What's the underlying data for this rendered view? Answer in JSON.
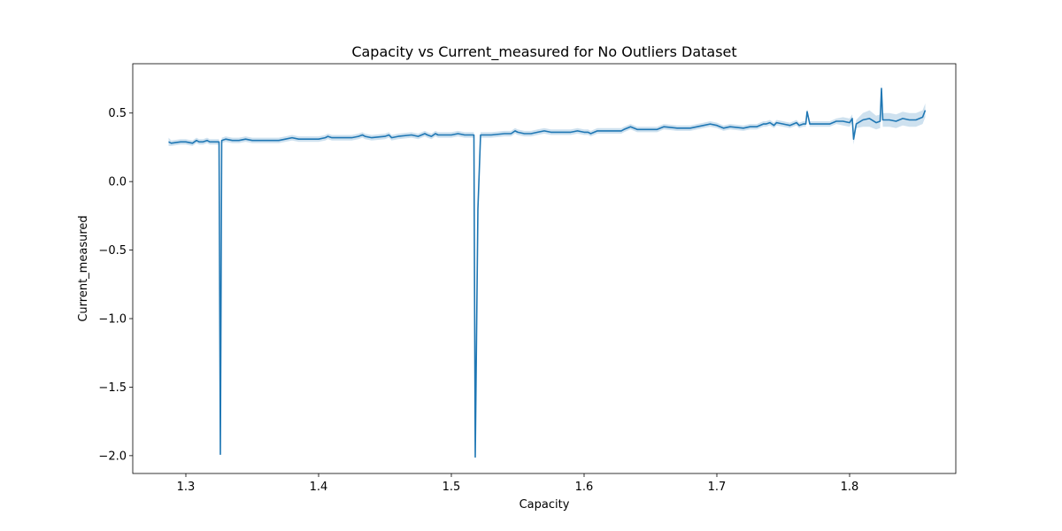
{
  "chart_data": {
    "type": "line",
    "title": "Capacity vs Current_measured for No Outliers Dataset",
    "xlabel": "Capacity",
    "ylabel": "Current_measured",
    "xlim": [
      1.26,
      1.88
    ],
    "ylim": [
      -2.13,
      0.86
    ],
    "xticks": [
      1.3,
      1.4,
      1.5,
      1.6,
      1.7,
      1.8
    ],
    "xtick_labels": [
      "1.3",
      "1.4",
      "1.5",
      "1.6",
      "1.7",
      "1.8"
    ],
    "yticks": [
      0.5,
      0.0,
      -0.5,
      -1.0,
      -1.5,
      -2.0
    ],
    "ytick_labels": [
      "0.5",
      "0.0",
      "−0.5",
      "−1.0",
      "−1.5",
      "−2.0"
    ],
    "grid": false,
    "series": [
      {
        "color": "#1f77b4",
        "band_color": "#1f77b4",
        "x": [
          1.287,
          1.289,
          1.296,
          1.3,
          1.305,
          1.308,
          1.31,
          1.313,
          1.316,
          1.318,
          1.32,
          1.323,
          1.325,
          1.326,
          1.327,
          1.33,
          1.335,
          1.34,
          1.345,
          1.35,
          1.36,
          1.37,
          1.375,
          1.38,
          1.385,
          1.39,
          1.4,
          1.405,
          1.407,
          1.41,
          1.415,
          1.42,
          1.425,
          1.43,
          1.433,
          1.435,
          1.44,
          1.45,
          1.453,
          1.455,
          1.46,
          1.47,
          1.475,
          1.48,
          1.482,
          1.485,
          1.488,
          1.49,
          1.495,
          1.5,
          1.505,
          1.51,
          1.515,
          1.517,
          1.518,
          1.52,
          1.522,
          1.525,
          1.53,
          1.54,
          1.545,
          1.548,
          1.55,
          1.555,
          1.56,
          1.565,
          1.57,
          1.575,
          1.58,
          1.585,
          1.59,
          1.595,
          1.6,
          1.603,
          1.605,
          1.61,
          1.62,
          1.628,
          1.63,
          1.635,
          1.64,
          1.65,
          1.655,
          1.66,
          1.67,
          1.675,
          1.68,
          1.69,
          1.695,
          1.7,
          1.705,
          1.71,
          1.72,
          1.725,
          1.73,
          1.735,
          1.737,
          1.74,
          1.743,
          1.745,
          1.75,
          1.755,
          1.76,
          1.762,
          1.765,
          1.767,
          1.768,
          1.77,
          1.775,
          1.78,
          1.785,
          1.79,
          1.795,
          1.8,
          1.802,
          1.803,
          1.805,
          1.81,
          1.815,
          1.82,
          1.823,
          1.824,
          1.825,
          1.83,
          1.835,
          1.84,
          1.845,
          1.85,
          1.855,
          1.857
        ],
        "y": [
          0.29,
          0.28,
          0.29,
          0.29,
          0.28,
          0.3,
          0.29,
          0.29,
          0.3,
          0.29,
          0.29,
          0.29,
          0.29,
          -1.99,
          0.3,
          0.31,
          0.3,
          0.3,
          0.31,
          0.3,
          0.3,
          0.3,
          0.31,
          0.32,
          0.31,
          0.31,
          0.31,
          0.32,
          0.33,
          0.32,
          0.32,
          0.32,
          0.32,
          0.33,
          0.34,
          0.33,
          0.32,
          0.33,
          0.34,
          0.32,
          0.33,
          0.34,
          0.33,
          0.35,
          0.34,
          0.33,
          0.35,
          0.34,
          0.34,
          0.34,
          0.35,
          0.34,
          0.34,
          0.34,
          -2.01,
          -0.2,
          0.34,
          0.34,
          0.34,
          0.35,
          0.35,
          0.37,
          0.36,
          0.35,
          0.35,
          0.36,
          0.37,
          0.36,
          0.36,
          0.36,
          0.36,
          0.37,
          0.36,
          0.36,
          0.35,
          0.37,
          0.37,
          0.37,
          0.38,
          0.4,
          0.38,
          0.38,
          0.38,
          0.4,
          0.39,
          0.39,
          0.39,
          0.41,
          0.42,
          0.41,
          0.39,
          0.4,
          0.39,
          0.4,
          0.4,
          0.42,
          0.42,
          0.43,
          0.41,
          0.43,
          0.42,
          0.41,
          0.43,
          0.41,
          0.42,
          0.42,
          0.51,
          0.42,
          0.42,
          0.42,
          0.42,
          0.44,
          0.44,
          0.43,
          0.46,
          0.31,
          0.42,
          0.45,
          0.46,
          0.43,
          0.44,
          0.68,
          0.45,
          0.45,
          0.44,
          0.46,
          0.45,
          0.45,
          0.47,
          0.52
        ],
        "band": [
          0.03,
          0.02,
          0.02,
          0.02,
          0.02,
          0.02,
          0.02,
          0.02,
          0.02,
          0.02,
          0.02,
          0.02,
          0.02,
          0.02,
          0.02,
          0.02,
          0.02,
          0.02,
          0.02,
          0.02,
          0.02,
          0.02,
          0.02,
          0.02,
          0.02,
          0.02,
          0.02,
          0.02,
          0.02,
          0.02,
          0.02,
          0.02,
          0.02,
          0.02,
          0.02,
          0.02,
          0.02,
          0.02,
          0.02,
          0.02,
          0.02,
          0.02,
          0.02,
          0.02,
          0.02,
          0.02,
          0.02,
          0.02,
          0.02,
          0.02,
          0.02,
          0.02,
          0.02,
          0.02,
          0.02,
          0.02,
          0.02,
          0.02,
          0.02,
          0.02,
          0.02,
          0.02,
          0.02,
          0.02,
          0.02,
          0.02,
          0.02,
          0.02,
          0.02,
          0.02,
          0.02,
          0.02,
          0.02,
          0.02,
          0.02,
          0.02,
          0.02,
          0.02,
          0.02,
          0.02,
          0.02,
          0.02,
          0.02,
          0.02,
          0.02,
          0.02,
          0.02,
          0.02,
          0.02,
          0.02,
          0.02,
          0.02,
          0.02,
          0.02,
          0.02,
          0.02,
          0.02,
          0.02,
          0.02,
          0.02,
          0.02,
          0.02,
          0.02,
          0.02,
          0.02,
          0.02,
          0.02,
          0.02,
          0.02,
          0.02,
          0.02,
          0.02,
          0.03,
          0.03,
          0.03,
          0.04,
          0.03,
          0.05,
          0.06,
          0.05,
          0.05,
          0.04,
          0.05,
          0.05,
          0.05,
          0.05,
          0.05,
          0.05,
          0.05,
          0.05
        ]
      }
    ]
  }
}
